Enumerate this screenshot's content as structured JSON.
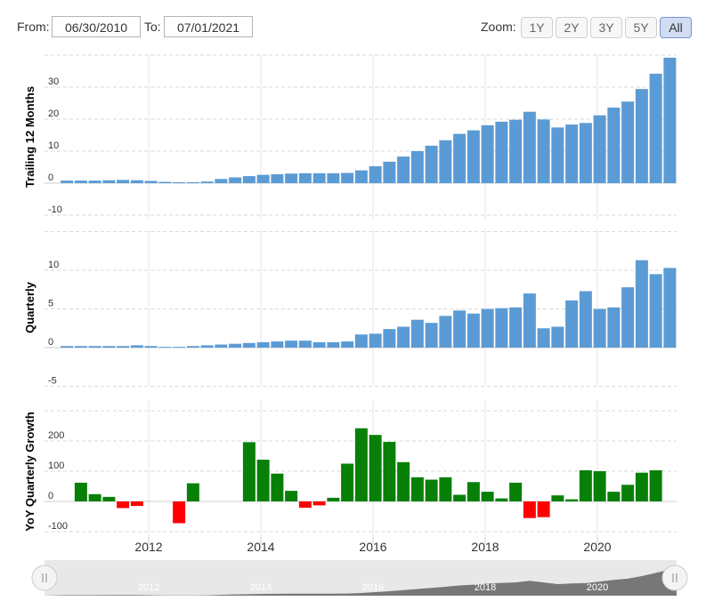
{
  "toolbar": {
    "from_label": "From:",
    "from_value": "06/30/2010",
    "to_label": "To:",
    "to_value": "07/01/2021",
    "zoom_label": "Zoom:",
    "zoom_buttons": [
      "1Y",
      "2Y",
      "3Y",
      "5Y",
      "All"
    ],
    "active_zoom": "All"
  },
  "colors": {
    "blue_bar": "#5b9bd5",
    "green_bar": "#088008",
    "red_bar": "#ff0000",
    "navigator_fill": "#777777"
  },
  "chart_data": [
    {
      "type": "bar",
      "ylabel": "Trailing 12 Months",
      "yticks": [
        -10,
        0,
        10,
        20,
        30
      ],
      "ylim": [
        -10,
        40
      ],
      "grid": true,
      "x": [
        "2010-09",
        "2010-12",
        "2011-03",
        "2011-06",
        "2011-09",
        "2011-12",
        "2012-03",
        "2012-06",
        "2012-09",
        "2012-12",
        "2013-03",
        "2013-06",
        "2013-09",
        "2013-12",
        "2014-03",
        "2014-06",
        "2014-09",
        "2014-12",
        "2015-03",
        "2015-06",
        "2015-09",
        "2015-12",
        "2016-03",
        "2016-06",
        "2016-09",
        "2016-12",
        "2017-03",
        "2017-06",
        "2017-09",
        "2017-12",
        "2018-03",
        "2018-06",
        "2018-09",
        "2018-12",
        "2019-03",
        "2019-06",
        "2019-09",
        "2019-12",
        "2020-03",
        "2020-06",
        "2020-09",
        "2020-12",
        "2021-03",
        "2021-06"
      ],
      "values": [
        0.8,
        0.8,
        0.8,
        0.9,
        1.0,
        0.9,
        0.7,
        0.4,
        0.3,
        0.3,
        0.5,
        1.3,
        1.8,
        2.2,
        2.6,
        2.8,
        3.0,
        3.1,
        3.1,
        3.1,
        3.2,
        4.0,
        5.3,
        6.7,
        8.3,
        10.0,
        11.7,
        13.4,
        15.4,
        16.5,
        18.1,
        19.2,
        19.8,
        22.3,
        19.9,
        17.4,
        18.3,
        18.8,
        21.2,
        23.6,
        25.5,
        29.4,
        34.2,
        39.2
      ]
    },
    {
      "type": "bar",
      "ylabel": "Quarterly",
      "yticks": [
        -5,
        0,
        5,
        10
      ],
      "ylim": [
        -5,
        15
      ],
      "grid": true,
      "x": [
        "2010-09",
        "2010-12",
        "2011-03",
        "2011-06",
        "2011-09",
        "2011-12",
        "2012-03",
        "2012-06",
        "2012-09",
        "2012-12",
        "2013-03",
        "2013-06",
        "2013-09",
        "2013-12",
        "2014-03",
        "2014-06",
        "2014-09",
        "2014-12",
        "2015-03",
        "2015-06",
        "2015-09",
        "2015-12",
        "2016-03",
        "2016-06",
        "2016-09",
        "2016-12",
        "2017-03",
        "2017-06",
        "2017-09",
        "2017-12",
        "2018-03",
        "2018-06",
        "2018-09",
        "2018-12",
        "2019-03",
        "2019-06",
        "2019-09",
        "2019-12",
        "2020-03",
        "2020-06",
        "2020-09",
        "2020-12",
        "2021-03",
        "2021-06"
      ],
      "values": [
        0.2,
        0.2,
        0.2,
        0.2,
        0.2,
        0.3,
        0.2,
        0.1,
        0.1,
        0.2,
        0.3,
        0.4,
        0.5,
        0.6,
        0.7,
        0.8,
        0.9,
        0.9,
        0.7,
        0.7,
        0.8,
        1.7,
        1.8,
        2.4,
        2.7,
        3.6,
        3.2,
        4.1,
        4.8,
        4.4,
        5.0,
        5.1,
        5.2,
        7.0,
        2.5,
        2.7,
        6.1,
        7.3,
        5.0,
        5.2,
        7.8,
        11.3,
        9.5,
        10.3
      ]
    },
    {
      "type": "bar",
      "ylabel": "YoY Quarterly Growth",
      "yticks": [
        -100,
        0,
        100,
        200
      ],
      "ylim": [
        -100,
        300
      ],
      "grid": true,
      "x": [
        "2010-09",
        "2010-12",
        "2011-03",
        "2011-06",
        "2011-09",
        "2011-12",
        "2012-03",
        "2012-06",
        "2012-09",
        "2012-12",
        "2013-03",
        "2013-06",
        "2013-09",
        "2013-12",
        "2014-03",
        "2014-06",
        "2014-09",
        "2014-12",
        "2015-03",
        "2015-06",
        "2015-09",
        "2015-12",
        "2016-03",
        "2016-06",
        "2016-09",
        "2016-12",
        "2017-03",
        "2017-06",
        "2017-09",
        "2017-12",
        "2018-03",
        "2018-06",
        "2018-09",
        "2018-12",
        "2019-03",
        "2019-06",
        "2019-09",
        "2019-12",
        "2020-03",
        "2020-06",
        "2020-09",
        "2020-12",
        "2021-03",
        "2021-06"
      ],
      "values": [
        null,
        62,
        24,
        15,
        -22,
        -15,
        null,
        null,
        -72,
        60,
        null,
        null,
        null,
        196,
        138,
        92,
        35,
        -21,
        -13,
        12,
        125,
        242,
        220,
        197,
        130,
        80,
        72,
        80,
        22,
        64,
        32,
        10,
        62,
        -55,
        -52,
        20,
        7,
        103,
        100,
        32,
        55,
        95,
        103,
        null
      ]
    }
  ],
  "x_axis": {
    "tick_labels": [
      "2012",
      "2014",
      "2016",
      "2018",
      "2020"
    ]
  },
  "navigator": {
    "labels": [
      "2012",
      "2014",
      "2016",
      "2018",
      "2020"
    ],
    "left_handle": "left-handle",
    "right_handle": "right-handle"
  }
}
